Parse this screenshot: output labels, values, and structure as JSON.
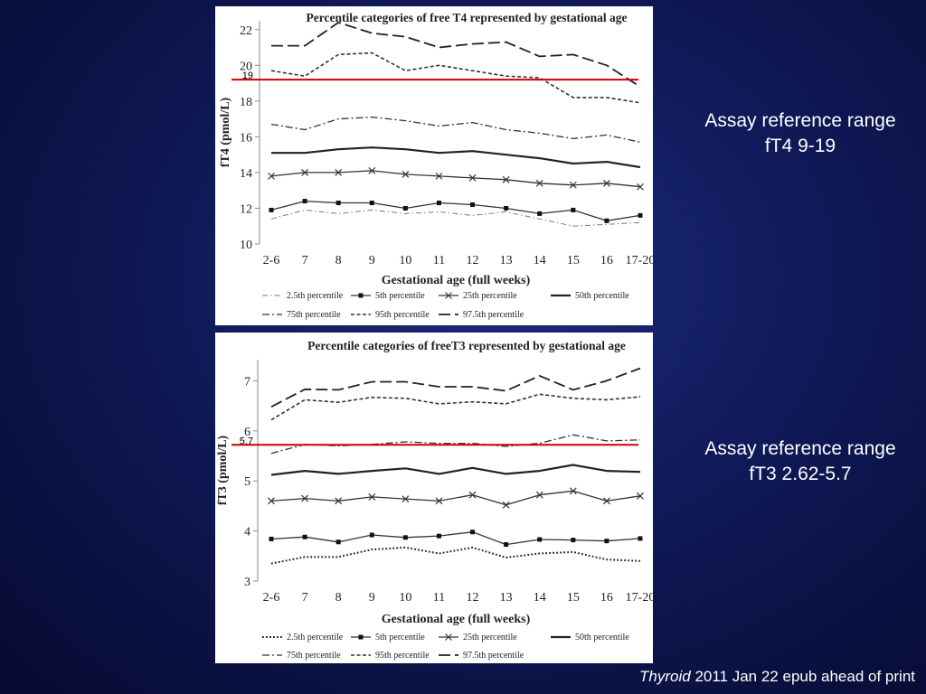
{
  "slide": {
    "ft4_range_line1": "Assay reference range",
    "ft4_range_line2": "fT4 9-19",
    "ft3_range_line1": "Assay reference range",
    "ft3_range_line2": "fT3 2.62-5.7",
    "citation_journal": "Thyroid",
    "citation_rest": " 2011 Jan 22 epub ahead of print"
  },
  "colors": {
    "background": "#0d1650",
    "reference_line": "#cc0000",
    "text": "#ffffff"
  },
  "chart_data": [
    {
      "type": "line",
      "title": "Percentile categories of free T4 represented by gestational age",
      "xlabel": "Gestational age (full weeks)",
      "ylabel": "fT4 (pmol/L)",
      "categories": [
        "2-6",
        "7",
        "8",
        "9",
        "10",
        "11",
        "12",
        "13",
        "14",
        "15",
        "16",
        "17-20"
      ],
      "ylim": [
        10,
        23
      ],
      "yticks": [
        10,
        12,
        14,
        16,
        18,
        20,
        22
      ],
      "reference_line": {
        "value": 19.2,
        "label": "19"
      },
      "legend_rows": [
        [
          "2.5th percentile",
          "5th percentile",
          "25th percentile",
          "50th percentile"
        ],
        [
          "75th percentile",
          "95th percentile",
          "97.5th percentile"
        ]
      ],
      "series": [
        {
          "name": "2.5th percentile",
          "style": "dash-dot-thin",
          "values": [
            11.4,
            11.9,
            11.7,
            11.9,
            11.7,
            11.8,
            11.6,
            11.8,
            11.4,
            11.0,
            11.1,
            11.2
          ]
        },
        {
          "name": "5th percentile",
          "style": "square",
          "values": [
            11.9,
            12.4,
            12.3,
            12.3,
            12.0,
            12.3,
            12.2,
            12.0,
            11.7,
            11.9,
            11.3,
            11.6
          ]
        },
        {
          "name": "25th percentile",
          "style": "cross",
          "values": [
            13.8,
            14.0,
            14.0,
            14.1,
            13.9,
            13.8,
            13.7,
            13.6,
            13.4,
            13.3,
            13.4,
            13.2
          ]
        },
        {
          "name": "50th percentile",
          "style": "solid",
          "values": [
            15.1,
            15.1,
            15.3,
            15.4,
            15.3,
            15.1,
            15.2,
            15.0,
            14.8,
            14.5,
            14.6,
            14.3
          ]
        },
        {
          "name": "75th percentile",
          "style": "dash-dot",
          "values": [
            16.7,
            16.4,
            17.0,
            17.1,
            16.9,
            16.6,
            16.8,
            16.4,
            16.2,
            15.9,
            16.1,
            15.7
          ]
        },
        {
          "name": "95th percentile",
          "style": "short-dash",
          "values": [
            19.7,
            19.4,
            20.6,
            20.7,
            19.7,
            20.0,
            19.7,
            19.4,
            19.3,
            18.2,
            18.2,
            17.9
          ]
        },
        {
          "name": "97.5th percentile",
          "style": "long-dash",
          "values": [
            21.1,
            21.1,
            22.4,
            21.8,
            21.6,
            21.0,
            21.2,
            21.3,
            20.5,
            20.6,
            20.0,
            18.8
          ]
        }
      ]
    },
    {
      "type": "line",
      "title": "Percentile categories of freeT3 represented by gestational age",
      "xlabel": "Gestational age (full weeks)",
      "ylabel": "fT3 (pmol/L)",
      "categories": [
        "2-6",
        "7",
        "8",
        "9",
        "10",
        "11",
        "12",
        "13",
        "14",
        "15",
        "16",
        "17-20"
      ],
      "ylim": [
        3,
        7.35
      ],
      "yticks": [
        3,
        4,
        5,
        6,
        7
      ],
      "reference_line": {
        "value": 5.72,
        "label": "5.7"
      },
      "legend_rows": [
        [
          "2.5th percentile",
          "5th percentile",
          "25th percentile",
          "50th percentile"
        ],
        [
          "75th percentile",
          "95th percentile",
          "97.5th percentile"
        ]
      ],
      "series": [
        {
          "name": "2.5th percentile",
          "style": "dotted",
          "values": [
            3.35,
            3.48,
            3.48,
            3.63,
            3.67,
            3.55,
            3.67,
            3.47,
            3.55,
            3.58,
            3.43,
            3.4
          ]
        },
        {
          "name": "5th percentile",
          "style": "square",
          "values": [
            3.84,
            3.88,
            3.78,
            3.92,
            3.87,
            3.9,
            3.98,
            3.73,
            3.83,
            3.82,
            3.8,
            3.85
          ]
        },
        {
          "name": "25th percentile",
          "style": "cross",
          "values": [
            4.6,
            4.65,
            4.6,
            4.68,
            4.64,
            4.6,
            4.72,
            4.52,
            4.72,
            4.8,
            4.6,
            4.7
          ]
        },
        {
          "name": "50th percentile",
          "style": "solid",
          "values": [
            5.12,
            5.2,
            5.14,
            5.2,
            5.25,
            5.14,
            5.26,
            5.14,
            5.2,
            5.32,
            5.2,
            5.18
          ]
        },
        {
          "name": "75th percentile",
          "style": "dash-dot",
          "values": [
            5.55,
            5.73,
            5.7,
            5.73,
            5.78,
            5.75,
            5.75,
            5.69,
            5.75,
            5.92,
            5.8,
            5.82
          ]
        },
        {
          "name": "95th percentile",
          "style": "short-dash",
          "values": [
            6.22,
            6.62,
            6.57,
            6.67,
            6.65,
            6.54,
            6.58,
            6.54,
            6.73,
            6.65,
            6.62,
            6.68
          ]
        },
        {
          "name": "97.5th percentile",
          "style": "long-dash",
          "values": [
            6.48,
            6.83,
            6.82,
            6.98,
            6.98,
            6.88,
            6.88,
            6.8,
            7.1,
            6.82,
            7.0,
            7.25
          ]
        }
      ]
    }
  ]
}
